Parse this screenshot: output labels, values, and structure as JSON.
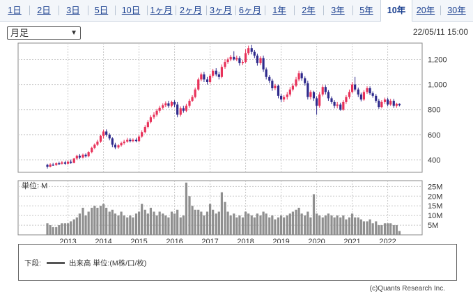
{
  "tabs": [
    {
      "label": "1日",
      "active": false
    },
    {
      "label": "2日",
      "active": false
    },
    {
      "label": "3日",
      "active": false
    },
    {
      "label": "5日",
      "active": false
    },
    {
      "label": "10日",
      "active": false
    },
    {
      "label": "1ヶ月",
      "active": false
    },
    {
      "label": "2ヶ月",
      "active": false
    },
    {
      "label": "3ヶ月",
      "active": false
    },
    {
      "label": "6ヶ月",
      "active": false
    },
    {
      "label": "1年",
      "active": false
    },
    {
      "label": "2年",
      "active": false
    },
    {
      "label": "3年",
      "active": false
    },
    {
      "label": "5年",
      "active": false
    },
    {
      "label": "10年",
      "active": true
    },
    {
      "label": "20年",
      "active": false
    },
    {
      "label": "30年",
      "active": false
    }
  ],
  "period_select": {
    "value": "月足"
  },
  "timestamp": "22/05/11 15:00",
  "volume_panel_label": "単位: M",
  "legend": {
    "title": "下段:",
    "item": "出来高 単位:(M株/口/枚)"
  },
  "copyright": "(c)Quants Research Inc.",
  "colors": {
    "up": "#e8325a",
    "down": "#2e2a8c",
    "volume": "#8f8f8f",
    "grid": "#c8c8c8"
  },
  "chart_data": {
    "type": "candlestick",
    "x_tick_labels": [
      "2013",
      "2014",
      "2015",
      "2016",
      "2017",
      "2018",
      "2019",
      "2020",
      "2021",
      "2022"
    ],
    "price_axis": {
      "ticks": [
        400,
        600,
        800,
        1000,
        1200
      ],
      "range": [
        300,
        1330
      ]
    },
    "volume_axis": {
      "ticks": [
        "5M",
        "10M",
        "15M",
        "20M",
        "25M"
      ],
      "range_m": [
        0,
        28
      ]
    },
    "monthly": [
      [
        2012.42,
        360,
        345,
        368,
        330,
        6
      ],
      [
        2012.5,
        345,
        362,
        372,
        340,
        5
      ],
      [
        2012.58,
        362,
        358,
        375,
        350,
        4
      ],
      [
        2012.67,
        358,
        372,
        380,
        352,
        4
      ],
      [
        2012.75,
        372,
        368,
        385,
        360,
        5
      ],
      [
        2012.83,
        368,
        380,
        390,
        362,
        6
      ],
      [
        2012.92,
        380,
        368,
        392,
        360,
        6
      ],
      [
        2013.0,
        368,
        385,
        395,
        362,
        6
      ],
      [
        2013.08,
        385,
        375,
        402,
        368,
        7
      ],
      [
        2013.17,
        375,
        410,
        415,
        372,
        8
      ],
      [
        2013.25,
        410,
        432,
        440,
        400,
        9
      ],
      [
        2013.33,
        432,
        418,
        445,
        405,
        11
      ],
      [
        2013.42,
        418,
        440,
        450,
        410,
        14
      ],
      [
        2013.5,
        440,
        428,
        452,
        418,
        10
      ],
      [
        2013.58,
        428,
        460,
        470,
        420,
        12
      ],
      [
        2013.67,
        460,
        495,
        505,
        452,
        14
      ],
      [
        2013.75,
        495,
        520,
        530,
        485,
        15
      ],
      [
        2013.83,
        520,
        545,
        560,
        510,
        14
      ],
      [
        2013.92,
        545,
        590,
        600,
        535,
        15
      ],
      [
        2014.0,
        590,
        625,
        640,
        570,
        16
      ],
      [
        2014.08,
        625,
        600,
        642,
        585,
        14
      ],
      [
        2014.17,
        600,
        570,
        612,
        555,
        12
      ],
      [
        2014.25,
        570,
        520,
        580,
        500,
        13
      ],
      [
        2014.33,
        520,
        498,
        535,
        485,
        11
      ],
      [
        2014.42,
        498,
        515,
        525,
        488,
        10
      ],
      [
        2014.5,
        515,
        532,
        545,
        505,
        12
      ],
      [
        2014.58,
        532,
        545,
        560,
        520,
        10
      ],
      [
        2014.67,
        545,
        560,
        575,
        535,
        9
      ],
      [
        2014.75,
        560,
        548,
        572,
        538,
        10
      ],
      [
        2014.83,
        548,
        560,
        570,
        540,
        9
      ],
      [
        2014.92,
        560,
        548,
        575,
        540,
        11
      ],
      [
        2015.0,
        548,
        585,
        600,
        540,
        12
      ],
      [
        2015.08,
        585,
        620,
        635,
        575,
        16
      ],
      [
        2015.17,
        620,
        660,
        675,
        610,
        13
      ],
      [
        2015.25,
        660,
        700,
        715,
        650,
        11
      ],
      [
        2015.33,
        700,
        740,
        755,
        690,
        14
      ],
      [
        2015.42,
        740,
        760,
        780,
        725,
        12
      ],
      [
        2015.5,
        760,
        790,
        805,
        745,
        10
      ],
      [
        2015.58,
        790,
        815,
        830,
        775,
        12
      ],
      [
        2015.67,
        815,
        835,
        850,
        800,
        11
      ],
      [
        2015.75,
        835,
        850,
        865,
        820,
        10
      ],
      [
        2015.83,
        850,
        830,
        870,
        815,
        9
      ],
      [
        2015.92,
        830,
        860,
        872,
        818,
        12
      ],
      [
        2016.0,
        860,
        840,
        875,
        820,
        11
      ],
      [
        2016.08,
        840,
        760,
        860,
        740,
        13
      ],
      [
        2016.17,
        760,
        810,
        825,
        745,
        9
      ],
      [
        2016.25,
        810,
        790,
        830,
        775,
        10
      ],
      [
        2016.33,
        790,
        830,
        845,
        780,
        27
      ],
      [
        2016.42,
        830,
        870,
        885,
        815,
        20
      ],
      [
        2016.5,
        870,
        900,
        915,
        860,
        15
      ],
      [
        2016.58,
        900,
        960,
        975,
        890,
        13
      ],
      [
        2016.67,
        960,
        1040,
        1055,
        950,
        13
      ],
      [
        2016.75,
        1040,
        1080,
        1095,
        1025,
        12
      ],
      [
        2016.83,
        1080,
        1040,
        1100,
        1020,
        10
      ],
      [
        2016.92,
        1040,
        1020,
        1060,
        1000,
        12
      ],
      [
        2017.0,
        1020,
        1070,
        1085,
        1005,
        16
      ],
      [
        2017.08,
        1070,
        1110,
        1125,
        1055,
        13
      ],
      [
        2017.17,
        1110,
        1080,
        1130,
        1065,
        11
      ],
      [
        2017.25,
        1080,
        1060,
        1100,
        1040,
        12
      ],
      [
        2017.33,
        1060,
        1140,
        1160,
        1050,
        22
      ],
      [
        2017.42,
        1140,
        1180,
        1200,
        1125,
        17
      ],
      [
        2017.5,
        1180,
        1200,
        1215,
        1165,
        12
      ],
      [
        2017.58,
        1200,
        1220,
        1235,
        1185,
        10
      ],
      [
        2017.67,
        1220,
        1200,
        1265,
        1190,
        11
      ],
      [
        2017.75,
        1200,
        1210,
        1230,
        1185,
        9
      ],
      [
        2017.83,
        1210,
        1170,
        1225,
        1150,
        10
      ],
      [
        2017.92,
        1170,
        1180,
        1195,
        1155,
        9
      ],
      [
        2018.0,
        1180,
        1250,
        1280,
        1170,
        12
      ],
      [
        2018.08,
        1250,
        1290,
        1310,
        1235,
        11
      ],
      [
        2018.17,
        1290,
        1260,
        1315,
        1240,
        10
      ],
      [
        2018.25,
        1260,
        1230,
        1275,
        1210,
        9
      ],
      [
        2018.33,
        1230,
        1170,
        1245,
        1150,
        11
      ],
      [
        2018.42,
        1170,
        1210,
        1225,
        1155,
        10
      ],
      [
        2018.5,
        1210,
        1120,
        1230,
        1100,
        12
      ],
      [
        2018.58,
        1120,
        1060,
        1135,
        1040,
        11
      ],
      [
        2018.67,
        1060,
        1030,
        1075,
        1010,
        9
      ],
      [
        2018.75,
        1030,
        970,
        1045,
        950,
        10
      ],
      [
        2018.83,
        970,
        990,
        1005,
        955,
        8
      ],
      [
        2018.92,
        990,
        910,
        1000,
        890,
        9
      ],
      [
        2019.0,
        910,
        880,
        925,
        860,
        10
      ],
      [
        2019.08,
        880,
        900,
        915,
        860,
        9
      ],
      [
        2019.17,
        900,
        920,
        940,
        880,
        10
      ],
      [
        2019.25,
        920,
        960,
        980,
        905,
        11
      ],
      [
        2019.33,
        960,
        990,
        1010,
        945,
        12
      ],
      [
        2019.42,
        990,
        1040,
        1060,
        980,
        13
      ],
      [
        2019.5,
        1040,
        1090,
        1110,
        1025,
        14
      ],
      [
        2019.58,
        1090,
        1050,
        1105,
        1030,
        11
      ],
      [
        2019.67,
        1050,
        1010,
        1065,
        990,
        10
      ],
      [
        2019.75,
        1010,
        900,
        1030,
        880,
        12
      ],
      [
        2019.83,
        900,
        940,
        955,
        880,
        9
      ],
      [
        2019.92,
        940,
        890,
        950,
        870,
        21
      ],
      [
        2020.0,
        890,
        830,
        905,
        760,
        11
      ],
      [
        2020.08,
        830,
        920,
        940,
        815,
        10
      ],
      [
        2020.17,
        920,
        980,
        995,
        905,
        9
      ],
      [
        2020.25,
        980,
        940,
        995,
        920,
        10
      ],
      [
        2020.33,
        940,
        890,
        955,
        870,
        11
      ],
      [
        2020.42,
        890,
        860,
        905,
        845,
        10
      ],
      [
        2020.5,
        860,
        830,
        875,
        810,
        9
      ],
      [
        2020.58,
        830,
        840,
        860,
        810,
        10
      ],
      [
        2020.67,
        840,
        800,
        855,
        790,
        9
      ],
      [
        2020.75,
        800,
        860,
        875,
        790,
        10
      ],
      [
        2020.83,
        860,
        900,
        915,
        845,
        8
      ],
      [
        2020.92,
        900,
        940,
        960,
        885,
        9
      ],
      [
        2021.0,
        940,
        1000,
        1020,
        930,
        11
      ],
      [
        2021.08,
        1000,
        960,
        1060,
        945,
        9
      ],
      [
        2021.17,
        960,
        920,
        975,
        900,
        9
      ],
      [
        2021.25,
        920,
        880,
        935,
        865,
        8
      ],
      [
        2021.33,
        880,
        940,
        955,
        870,
        7
      ],
      [
        2021.42,
        940,
        970,
        985,
        925,
        7
      ],
      [
        2021.5,
        970,
        930,
        985,
        915,
        8
      ],
      [
        2021.58,
        930,
        910,
        945,
        895,
        6
      ],
      [
        2021.67,
        910,
        870,
        925,
        855,
        7
      ],
      [
        2021.75,
        870,
        820,
        885,
        805,
        5
      ],
      [
        2021.83,
        820,
        860,
        875,
        810,
        5
      ],
      [
        2021.92,
        860,
        880,
        895,
        845,
        6
      ],
      [
        2022.0,
        880,
        840,
        895,
        825,
        6
      ],
      [
        2022.08,
        840,
        870,
        885,
        830,
        6
      ],
      [
        2022.17,
        870,
        830,
        885,
        815,
        5
      ],
      [
        2022.25,
        830,
        845,
        855,
        815,
        5
      ],
      [
        2022.33,
        845,
        835,
        850,
        825,
        2
      ]
    ]
  }
}
